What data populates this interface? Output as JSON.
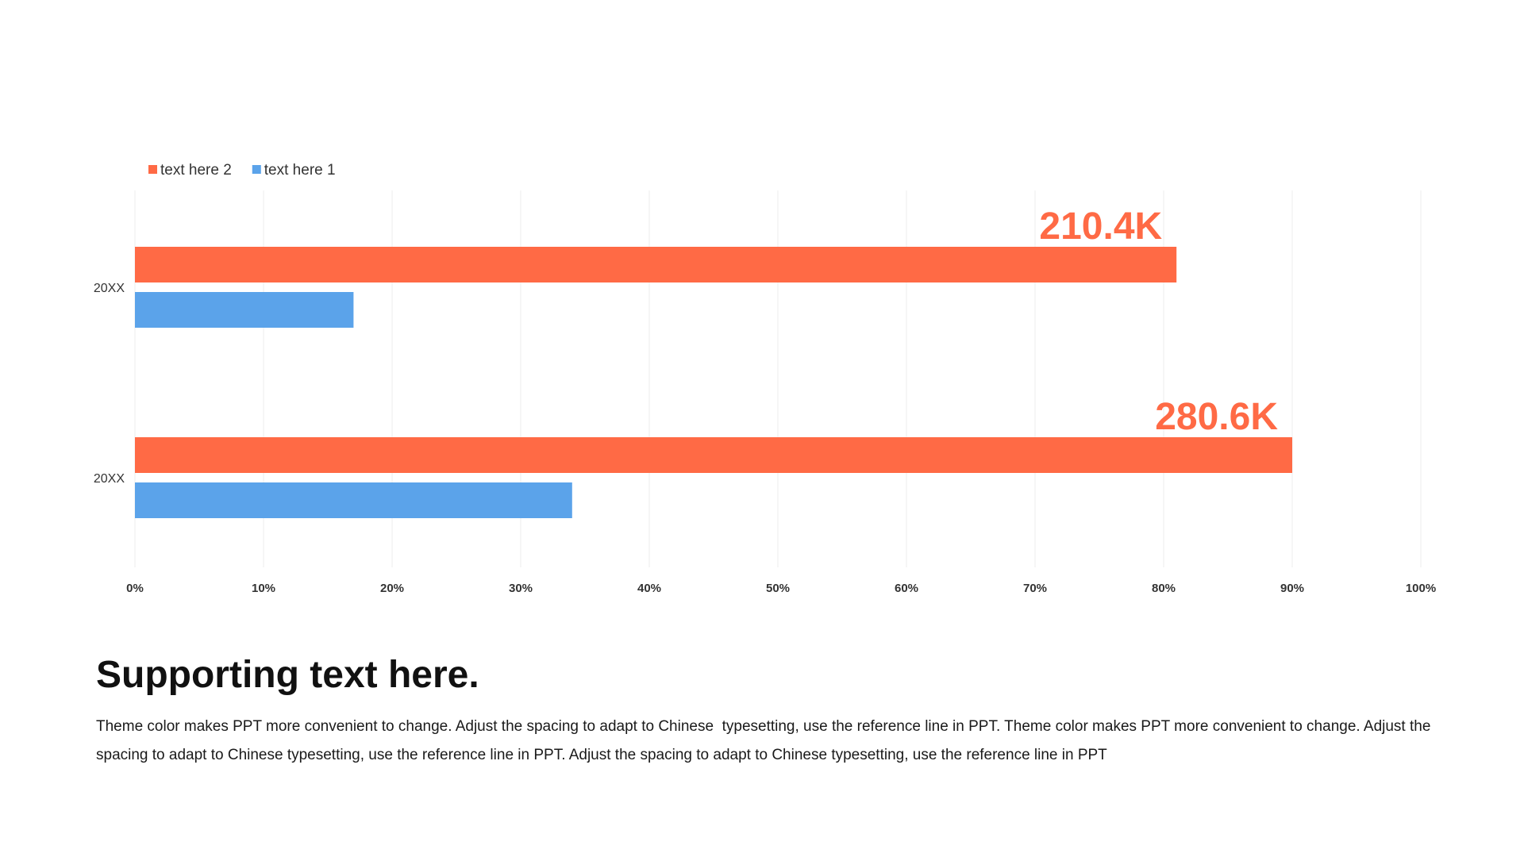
{
  "chart_data": {
    "type": "bar",
    "orientation": "horizontal",
    "categories": [
      "20XX",
      "20XX"
    ],
    "series": [
      {
        "name": "text here 2",
        "color": "#FF6A45",
        "values": [
          81,
          90
        ]
      },
      {
        "name": "text here 1",
        "color": "#5BA3EA",
        "values": [
          17,
          34
        ]
      }
    ],
    "data_labels": [
      {
        "series": 0,
        "category": 0,
        "text": "210.4K"
      },
      {
        "series": 0,
        "category": 1,
        "text": "280.6K"
      }
    ],
    "data_label_color": "#FF6A45",
    "xticks": [
      "0%",
      "10%",
      "20%",
      "30%",
      "40%",
      "50%",
      "60%",
      "70%",
      "80%",
      "90%",
      "100%"
    ],
    "xlim": [
      0,
      100
    ],
    "xlabel": "",
    "ylabel": "",
    "grid": true,
    "legend_position": "top-left"
  },
  "supporting": {
    "title": "Supporting text here.",
    "body": "Theme color makes PPT more convenient to change. Adjust the spacing to adapt to Chinese  typesetting, use the reference line in PPT. Theme color makes PPT more convenient to change. Adjust the spacing to adapt to Chinese typesetting, use the reference line in PPT. Adjust the spacing to adapt to Chinese typesetting, use the reference line in PPT"
  }
}
